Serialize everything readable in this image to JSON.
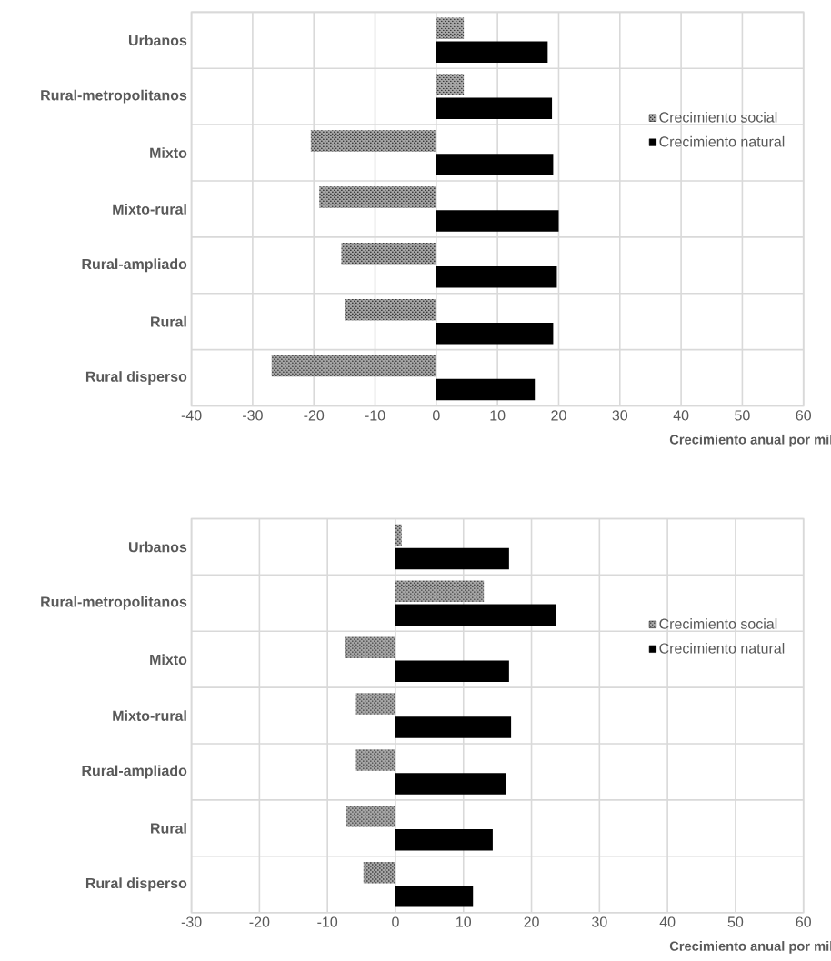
{
  "chart_data": [
    {
      "type": "bar",
      "orientation": "horizontal",
      "categories": [
        "Urbanos",
        "Rural-metropolitanos",
        "Mixto",
        "Mixto-rural",
        "Rural-ampliado",
        "Rural",
        "Rural disperso"
      ],
      "xlabel": "Crecimiento anual por mil",
      "xlim": [
        -40,
        60
      ],
      "xticks": [
        -40,
        -30,
        -20,
        -10,
        0,
        10,
        20,
        30,
        40,
        50,
        60
      ],
      "grid": true,
      "legend": "right",
      "series": [
        {
          "name": "Crecimiento social",
          "color": "#a6a6a6",
          "values": [
            4.5,
            4.5,
            -20.5,
            -19.1,
            -15.5,
            -14.9,
            -26.9
          ]
        },
        {
          "name": "Crecimiento natural",
          "color": "#000000",
          "values": [
            18.2,
            18.9,
            19.1,
            20,
            19.7,
            19.1,
            16.1
          ]
        }
      ]
    },
    {
      "type": "bar",
      "orientation": "horizontal",
      "categories": [
        "Urbanos",
        "Rural-metropolitanos",
        "Mixto",
        "Mixto-rural",
        "Rural-ampliado",
        "Rural",
        "Rural disperso"
      ],
      "xlabel": "Crecimiento anual por mil",
      "xlim": [
        -30,
        60
      ],
      "xticks": [
        -30,
        -20,
        -10,
        0,
        10,
        20,
        30,
        40,
        50,
        60
      ],
      "grid": true,
      "legend": "right",
      "series": [
        {
          "name": "Crecimiento social",
          "color": "#a6a6a6",
          "values": [
            0.9,
            13,
            -7.4,
            -5.8,
            -5.8,
            -7.2,
            -4.7
          ]
        },
        {
          "name": "Crecimiento natural",
          "color": "#000000",
          "values": [
            16.7,
            23.6,
            16.7,
            17,
            16.2,
            14.3,
            11.4
          ]
        }
      ]
    }
  ]
}
